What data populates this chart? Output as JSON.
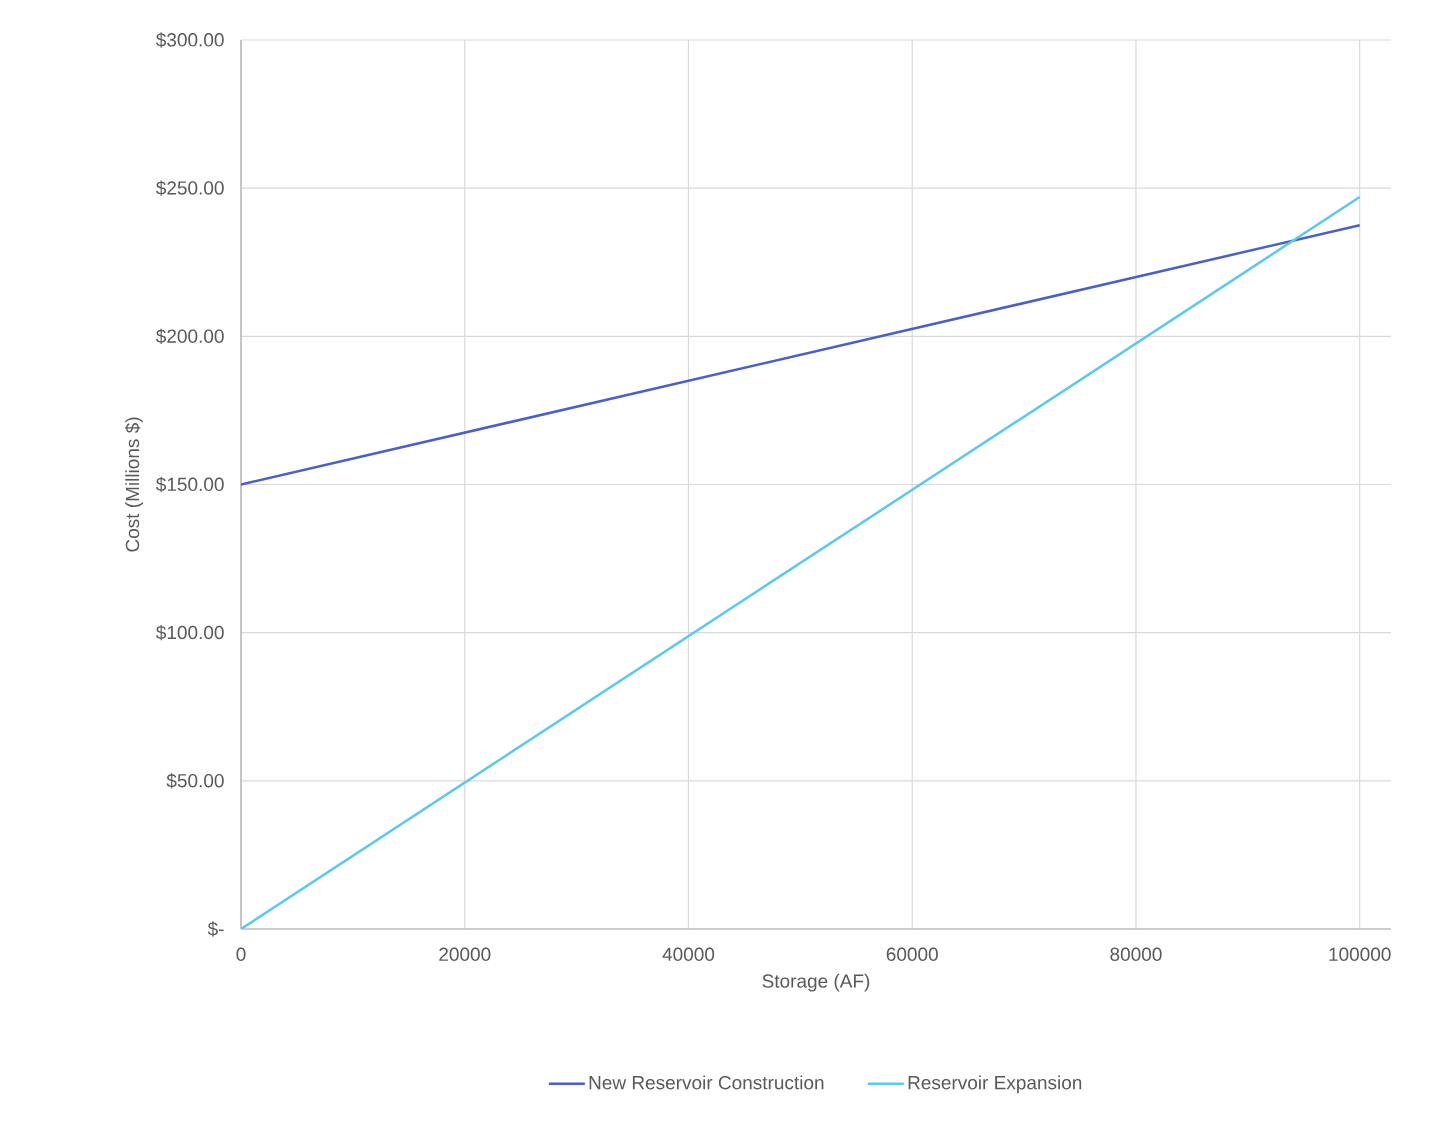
{
  "chart_data": {
    "type": "line",
    "xlabel": "Storage (AF)",
    "ylabel": "Cost (Millions $)",
    "series": [
      {
        "name": "New Reservoir Construction",
        "color": "#4a5fc9",
        "values": [
          150,
          237.5
        ]
      },
      {
        "name": "Reservoir Expansion",
        "color": "#5bc8ee",
        "values": [
          0,
          247
        ]
      }
    ],
    "x": [
      0,
      100000
    ],
    "xlim": [
      0,
      102800
    ],
    "ylim": [
      0,
      300
    ],
    "xticks": [
      0,
      20000,
      40000,
      60000,
      80000,
      100000
    ],
    "yticks": [
      {
        "value": 0,
        "label": "$-"
      },
      {
        "value": 50,
        "label": "$50.00"
      },
      {
        "value": 100,
        "label": "$100.00"
      },
      {
        "value": 150,
        "label": "$150.00"
      },
      {
        "value": 200,
        "label": "$200.00"
      },
      {
        "value": 250,
        "label": "$250.00"
      },
      {
        "value": 300,
        "label": "$300.00"
      }
    ],
    "grid": true,
    "legend": "bottom",
    "marker": "none",
    "line_style": "solid"
  }
}
